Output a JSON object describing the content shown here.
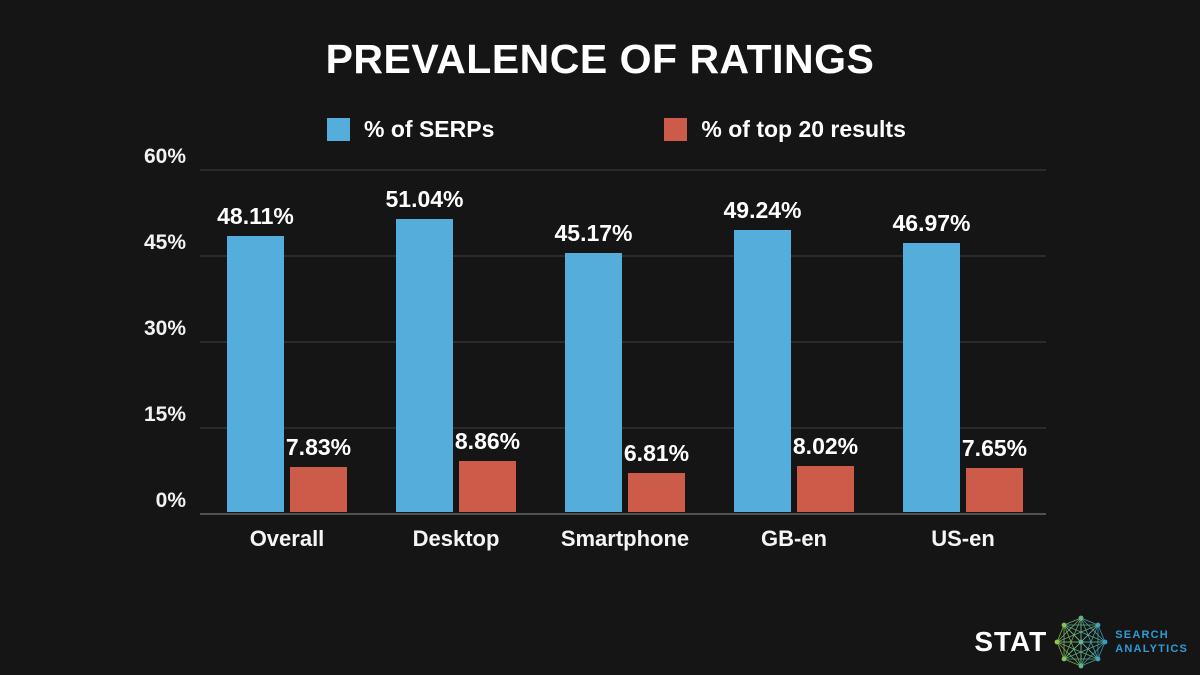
{
  "title": "PREVALENCE OF RATINGS",
  "legend": [
    {
      "label": "% of SERPs",
      "color": "#54ADDB"
    },
    {
      "label": "% of top 20 results",
      "color": "#CD5B49"
    }
  ],
  "chart_data": {
    "type": "bar",
    "title": "PREVALENCE OF RATINGS",
    "categories": [
      "Overall",
      "Desktop",
      "Smartphone",
      "GB-en",
      "US-en"
    ],
    "series": [
      {
        "name": "% of SERPs",
        "color": "#54ADDB",
        "values": [
          48.11,
          51.04,
          45.17,
          49.24,
          46.97
        ],
        "data_labels": [
          "48.11%",
          "51.04%",
          "45.17%",
          "49.24%",
          "46.97%"
        ]
      },
      {
        "name": "% of top 20 results",
        "color": "#CD5B49",
        "values": [
          7.83,
          8.86,
          6.81,
          8.02,
          7.65
        ],
        "data_labels": [
          "7.83%",
          "8.86%",
          "6.81%",
          "8.02%",
          "7.65%"
        ]
      }
    ],
    "xlabel": "",
    "ylabel": "",
    "ylim": [
      0,
      60
    ],
    "y_ticks": [
      {
        "value": 0,
        "label": "0%"
      },
      {
        "value": 15,
        "label": "15%"
      },
      {
        "value": 30,
        "label": "30%"
      },
      {
        "value": 45,
        "label": "45%"
      },
      {
        "value": 60,
        "label": "60%"
      }
    ],
    "grid": true,
    "legend_position": "top"
  },
  "footer": {
    "brand": "STAT",
    "tagline_line1": "SEARCH",
    "tagline_line2": "ANALYTICS"
  },
  "colors": {
    "background": "#151515",
    "text": "#ffffff",
    "gridline": "#2b2b2b",
    "axis_line": "#515151",
    "serps_blue": "#54ADDB",
    "top20_red": "#CD5B49",
    "logo_blue": "#2d9cd8",
    "logo_green": "#9ACA3C"
  }
}
